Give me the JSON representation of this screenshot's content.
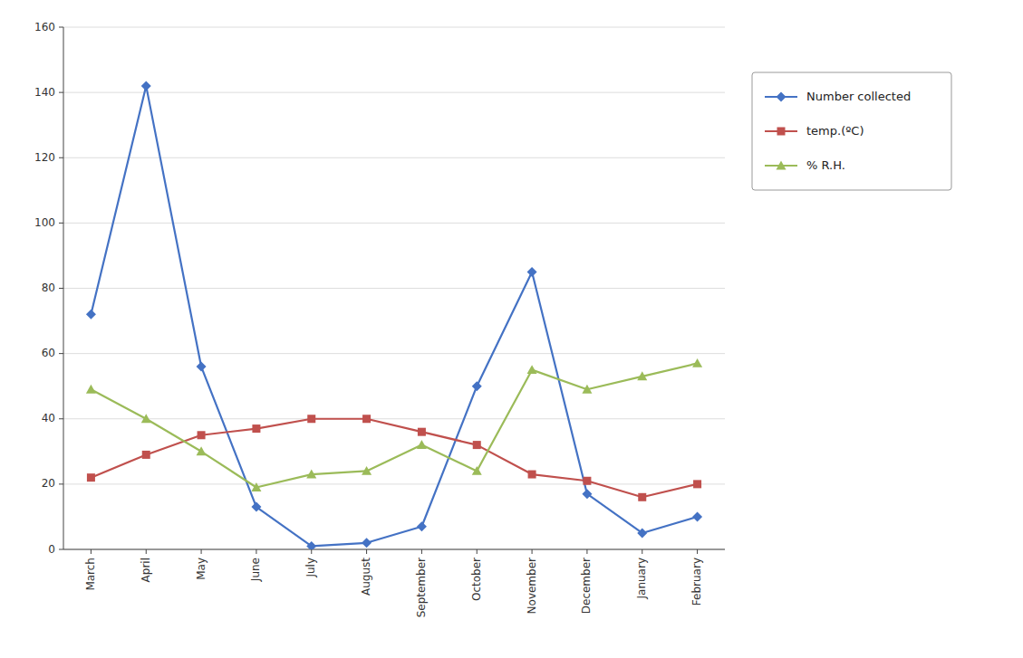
{
  "chart_data": {
    "type": "line",
    "categories": [
      "March",
      "April",
      "May",
      "June",
      "July",
      "August",
      "September",
      "October",
      "November",
      "December",
      "January",
      "February"
    ],
    "series": [
      {
        "name": "Number collected",
        "color": "#4472C4",
        "marker": "diamond",
        "values": [
          72,
          142,
          56,
          13,
          1,
          2,
          7,
          50,
          85,
          17,
          5,
          10
        ]
      },
      {
        "name": "temp.(ºC)",
        "color": "#C0504D",
        "marker": "square",
        "values": [
          22,
          29,
          35,
          37,
          40,
          40,
          36,
          32,
          23,
          21,
          16,
          20
        ]
      },
      {
        "name": "% R.H.",
        "color": "#9BBB59",
        "marker": "triangle",
        "values": [
          49,
          40,
          30,
          19,
          23,
          24,
          32,
          24,
          55,
          49,
          53,
          57
        ]
      }
    ],
    "ylim": [
      0,
      160
    ],
    "yticks": [
      0,
      20,
      40,
      60,
      80,
      100,
      120,
      140,
      160
    ],
    "grid": true,
    "legend": "right"
  }
}
